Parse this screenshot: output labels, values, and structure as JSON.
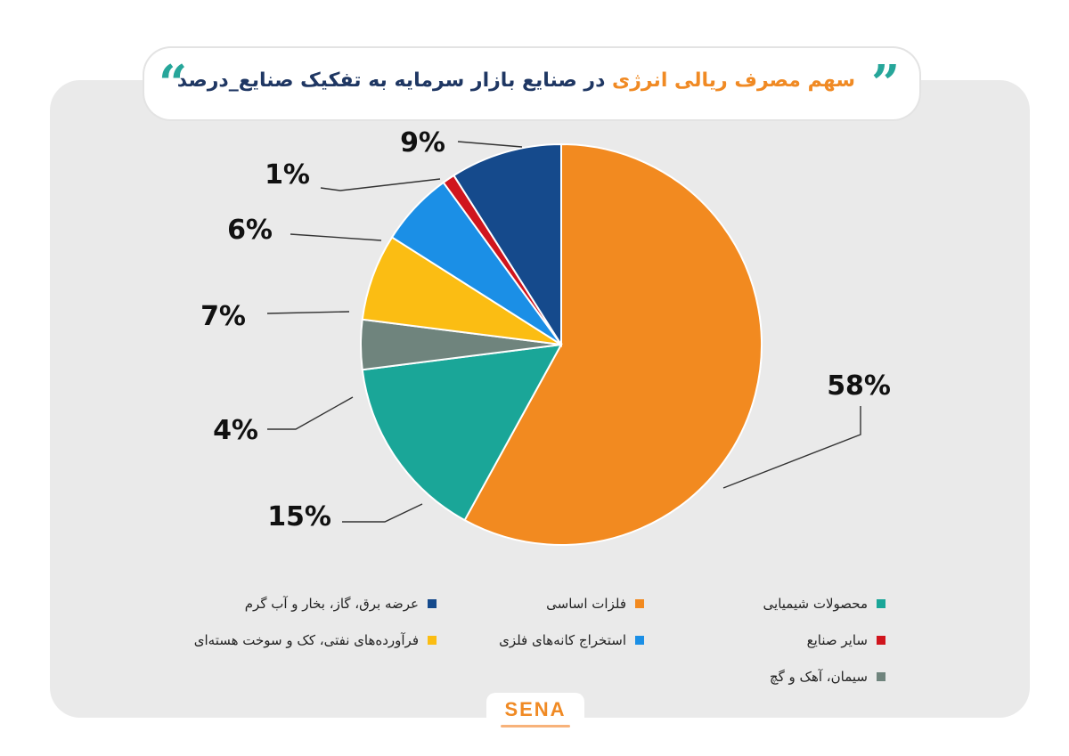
{
  "header": {
    "title_accent": "سهم مصرف ریالی انرژی",
    "title_rest": " در صنایع بازار سرمایه به تفکیک صنایع_درصد",
    "open_quote": "“",
    "close_quote": "”"
  },
  "brand": {
    "name": "SENA"
  },
  "colors": {
    "card_bg": "#eaeaea",
    "title_text": "#1f3763",
    "title_accent": "#f08a24",
    "quote": "#26a69a"
  },
  "chart_data": {
    "type": "pie",
    "start_angle_deg": 0,
    "direction": "clockwise",
    "slices": [
      {
        "name": "فلزات اساسی",
        "value": 58,
        "label": "58%",
        "color": "#f28a20"
      },
      {
        "name": "محصولات شیمیایی",
        "value": 15,
        "label": "15%",
        "color": "#1aa698"
      },
      {
        "name": "سیمان، آهک و گچ",
        "value": 4,
        "label": "4%",
        "color": "#6f847d"
      },
      {
        "name": "فرآورده‌های نفتی، کک و سوخت هسته‌ای",
        "value": 7,
        "label": "7%",
        "color": "#fbbd13"
      },
      {
        "name": "استخراج کانه‌های فلزی",
        "value": 6,
        "label": "6%",
        "color": "#1b8fe6"
      },
      {
        "name": "سایر صنایع",
        "value": 1,
        "label": "1%",
        "color": "#d0151d"
      },
      {
        "name": "عرضه برق، گاز، بخار و آب گرم",
        "value": 9,
        "label": "9%",
        "color": "#154a8c"
      }
    ],
    "legend": {
      "placement": "bottom",
      "items": [
        {
          "name": "محصولات شیمیایی",
          "color": "#1aa698"
        },
        {
          "name": "فلزات اساسی",
          "color": "#f28a20"
        },
        {
          "name": "عرضه برق، گاز، بخار و آب گرم",
          "color": "#154a8c"
        },
        {
          "name": "سایر صنایع",
          "color": "#d0151d"
        },
        {
          "name": "استخراج کانه‌های فلزی",
          "color": "#1b8fe6"
        },
        {
          "name": "فرآورده‌های نفتی، کک و سوخت هسته‌ای",
          "color": "#fbbd13"
        },
        {
          "name": "سیمان، آهک و گچ",
          "color": "#6f847d"
        }
      ]
    }
  }
}
